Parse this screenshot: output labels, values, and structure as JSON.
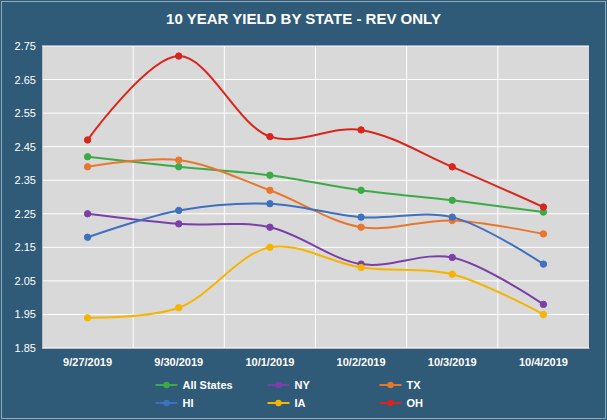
{
  "chart_data": {
    "type": "line",
    "title": "10 YEAR YIELD BY STATE - REV ONLY",
    "categories": [
      "9/27/2019",
      "9/30/2019",
      "10/1/2019",
      "10/2/2019",
      "10/3/2019",
      "10/4/2019"
    ],
    "series": [
      {
        "name": "All States",
        "color": "#3DAA48",
        "values": [
          2.42,
          2.39,
          2.365,
          2.32,
          2.29,
          2.255
        ]
      },
      {
        "name": "NY",
        "color": "#7A3FA8",
        "values": [
          2.25,
          2.22,
          2.21,
          2.1,
          2.12,
          1.98
        ]
      },
      {
        "name": "TX",
        "color": "#E8772E",
        "values": [
          2.39,
          2.41,
          2.32,
          2.21,
          2.23,
          2.19
        ]
      },
      {
        "name": "HI",
        "color": "#3F6FBF",
        "values": [
          2.18,
          2.26,
          2.28,
          2.24,
          2.24,
          2.1
        ]
      },
      {
        "name": "IA",
        "color": "#F5B400",
        "values": [
          1.94,
          1.97,
          2.15,
          2.09,
          2.07,
          1.95
        ]
      },
      {
        "name": "OH",
        "color": "#D9261C",
        "values": [
          2.47,
          2.72,
          2.48,
          2.5,
          2.39,
          2.27
        ]
      }
    ],
    "ylim": [
      1.85,
      2.75
    ],
    "yticks": [
      1.85,
      1.95,
      2.05,
      2.15,
      2.25,
      2.35,
      2.45,
      2.55,
      2.65,
      2.75
    ],
    "grid": true,
    "legend": "bottom",
    "marker": "circle",
    "line_style": "smooth"
  }
}
